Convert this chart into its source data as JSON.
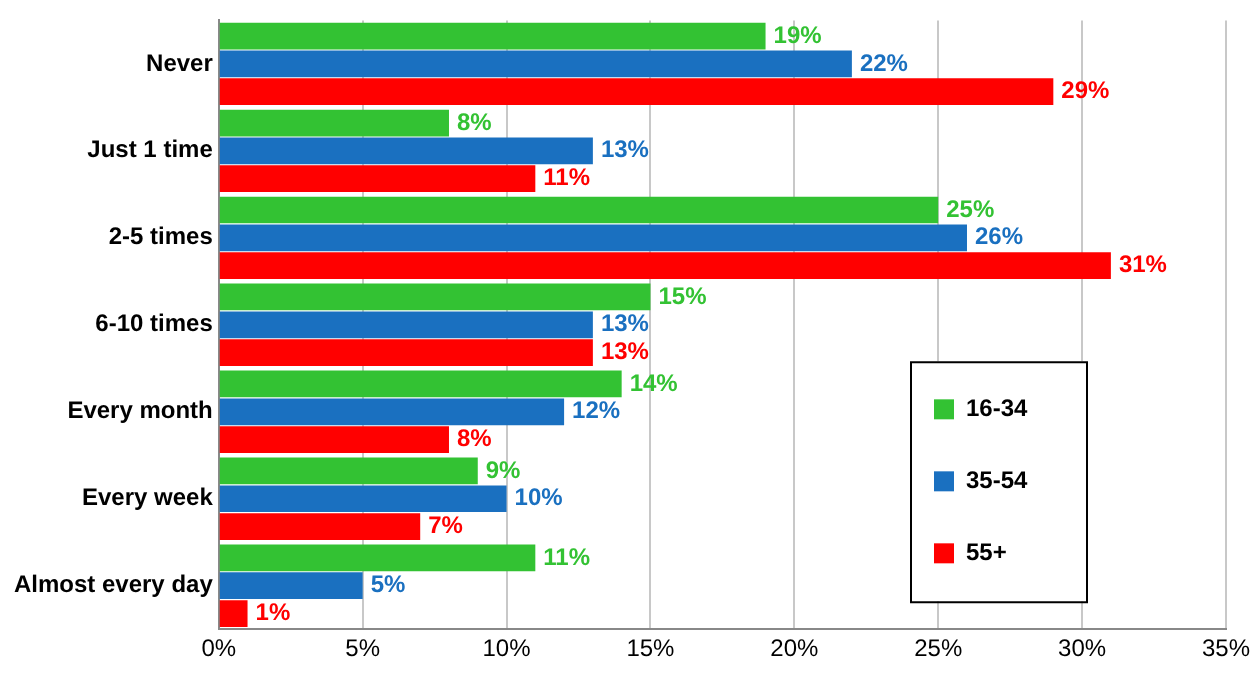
{
  "chart_data": {
    "type": "bar",
    "orientation": "horizontal",
    "categories": [
      "Never",
      "Just 1 time",
      "2-5 times",
      "6-10 times",
      "Every month",
      "Every week",
      "Almost every day"
    ],
    "series": [
      {
        "name": "16-34",
        "color": "#33c233",
        "values": [
          19,
          8,
          25,
          15,
          14,
          9,
          11
        ],
        "value_labels": [
          "19%",
          "8%",
          "25%",
          "15%",
          "14%",
          "9%",
          "11%"
        ]
      },
      {
        "name": "35-54",
        "color": "#1a70c0",
        "values": [
          22,
          13,
          26,
          13,
          12,
          10,
          5
        ],
        "value_labels": [
          "22%",
          "13%",
          "26%",
          "13%",
          "12%",
          "10%",
          "5%"
        ]
      },
      {
        "name": "55+",
        "color": "#ff0000",
        "values": [
          29,
          11,
          31,
          13,
          8,
          7,
          1
        ],
        "value_labels": [
          "29%",
          "11%",
          "31%",
          "13%",
          "8%",
          "7%",
          "1%"
        ]
      }
    ],
    "xlim": [
      0,
      35
    ],
    "xticks": [
      {
        "value": 0,
        "label": "0%"
      },
      {
        "value": 5,
        "label": "5%"
      },
      {
        "value": 10,
        "label": "10%"
      },
      {
        "value": 15,
        "label": "15%"
      },
      {
        "value": 20,
        "label": "20%"
      },
      {
        "value": 25,
        "label": "25%"
      },
      {
        "value": 30,
        "label": "30%"
      },
      {
        "value": 35,
        "label": "35%"
      }
    ],
    "grid": "x",
    "legend": "right"
  }
}
